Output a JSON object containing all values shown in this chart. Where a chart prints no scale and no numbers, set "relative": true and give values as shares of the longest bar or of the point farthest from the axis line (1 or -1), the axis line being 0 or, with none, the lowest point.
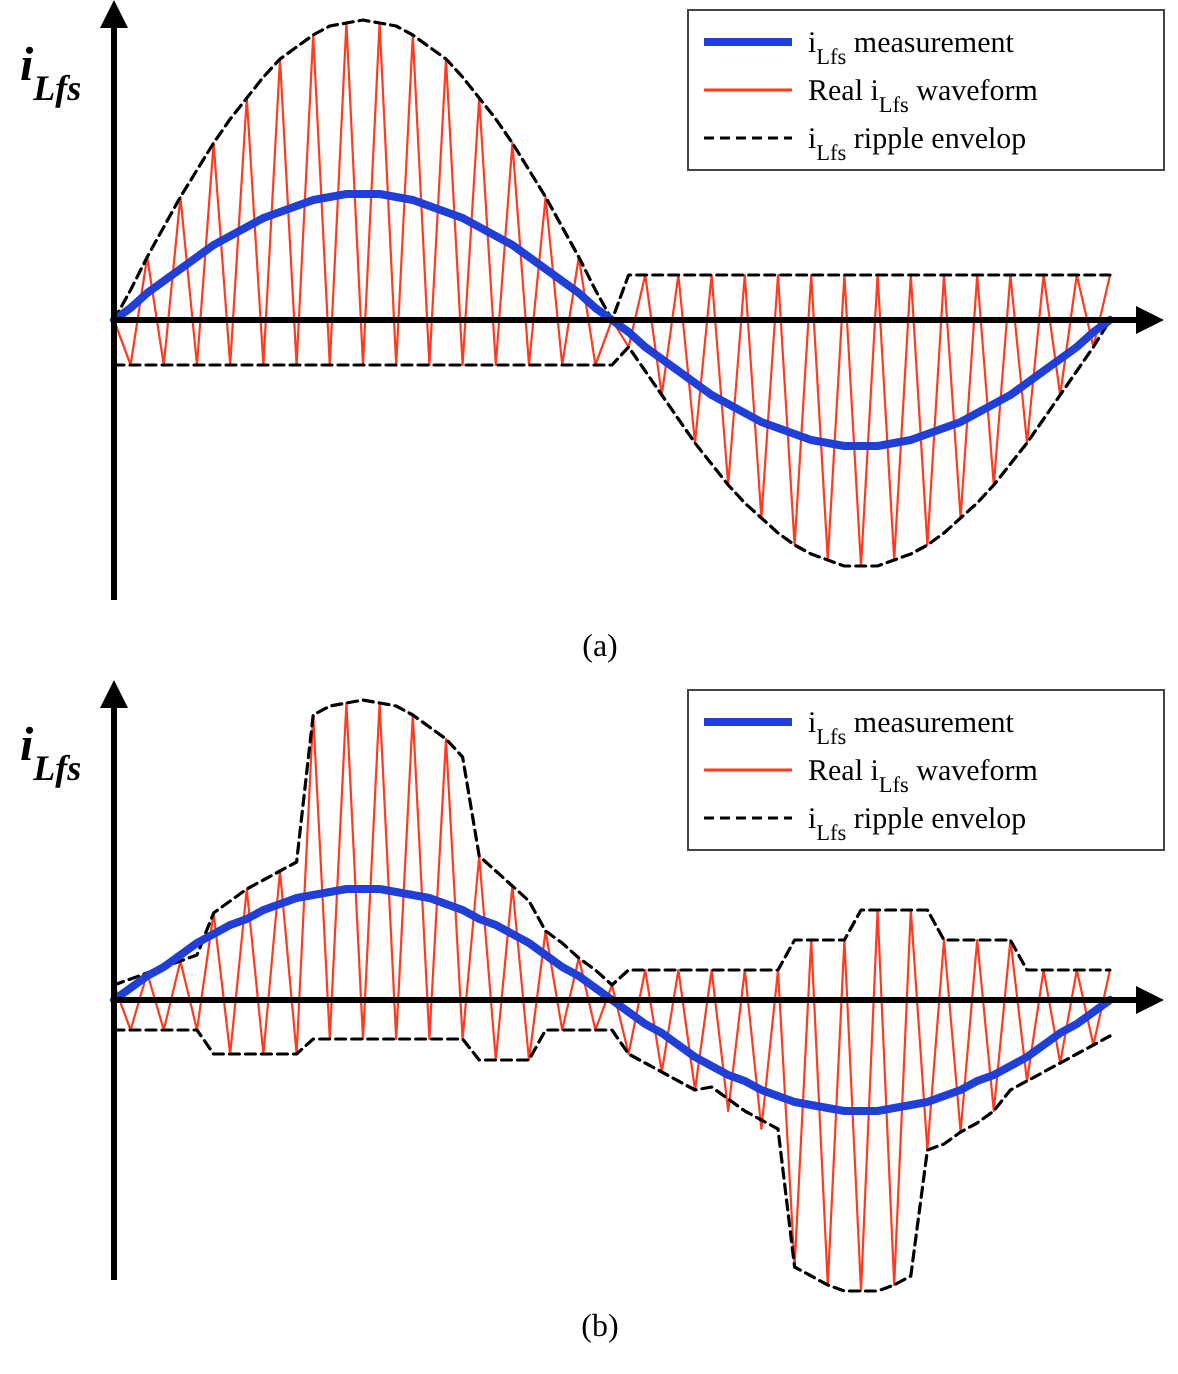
{
  "chart_data": [
    {
      "type": "line",
      "title": "(a)",
      "ylabel": "i$_{Lfs}$",
      "relative": true,
      "legend": "top right",
      "categories": [
        null,
        null,
        null,
        null,
        null,
        null,
        null,
        null,
        null,
        null,
        null,
        null,
        null,
        null,
        null,
        null,
        null,
        null,
        null,
        null,
        null,
        null,
        null,
        null,
        null,
        null,
        null,
        null,
        null,
        null,
        null,
        null,
        null,
        null,
        null,
        null,
        null,
        null,
        null,
        null,
        null,
        null,
        null,
        null,
        null,
        null,
        null,
        null,
        null,
        null,
        null,
        null,
        null,
        null,
        null,
        null,
        null,
        null,
        null,
        null,
        null
      ],
      "series": [
        {
          "name": "Real i$_{Lfs}$ waveform",
          "color": "#ff3b1f",
          "line_style": "solid",
          "values": [
            0,
            -0.15,
            0.21,
            -0.15,
            0.41,
            -0.15,
            0.59,
            -0.15,
            0.74,
            -0.15,
            0.87,
            -0.15,
            0.95,
            -0.15,
            0.99,
            -0.15,
            0.99,
            -0.15,
            0.95,
            -0.15,
            0.87,
            -0.15,
            0.74,
            -0.15,
            0.59,
            -0.15,
            0.41,
            -0.15,
            0.21,
            -0.15,
            0,
            -0.09,
            0.15,
            -0.25,
            0.15,
            -0.41,
            0.15,
            -0.55,
            0.15,
            -0.66,
            0.15,
            -0.75,
            0.15,
            -0.8,
            0.15,
            -0.82,
            0.15,
            -0.8,
            0.15,
            -0.75,
            0.15,
            -0.66,
            0.15,
            -0.55,
            0.15,
            -0.41,
            0.15,
            -0.25,
            0.15,
            -0.09,
            0.15
          ]
        },
        {
          "name": "i$_{Lfs}$ ripple envelop",
          "color": "#000000",
          "line_style": "dashed",
          "values": [
            0,
            0.1,
            0.21,
            0.31,
            0.41,
            0.5,
            0.59,
            0.67,
            0.74,
            0.81,
            0.87,
            0.91,
            0.95,
            0.98,
            0.99,
            1,
            0.99,
            0.98,
            0.95,
            0.91,
            0.87,
            0.81,
            0.74,
            0.67,
            0.59,
            0.5,
            0.41,
            0.31,
            0.21,
            0.1,
            0,
            0.15,
            0.15,
            0.15,
            0.15,
            0.15,
            0.15,
            0.15,
            0.15,
            0.15,
            0.15,
            0.15,
            0.15,
            0.15,
            0.15,
            0.15,
            0.15,
            0.15,
            0.15,
            0.15,
            0.15,
            0.15,
            0.15,
            0.15,
            0.15,
            0.15,
            0.15,
            0.15,
            0.15,
            0.15,
            0.15
          ]
        },
        {
          "color": "#000000",
          "line_style": "dashed",
          "values": [
            -0.15,
            -0.15,
            -0.15,
            -0.15,
            -0.15,
            -0.15,
            -0.15,
            -0.15,
            -0.15,
            -0.15,
            -0.15,
            -0.15,
            -0.15,
            -0.15,
            -0.15,
            -0.15,
            -0.15,
            -0.15,
            -0.15,
            -0.15,
            -0.15,
            -0.15,
            -0.15,
            -0.15,
            -0.15,
            -0.15,
            -0.15,
            -0.15,
            -0.15,
            -0.15,
            -0.15,
            -0.09,
            -0.17,
            -0.25,
            -0.33,
            -0.41,
            -0.48,
            -0.55,
            -0.61,
            -0.66,
            -0.71,
            -0.75,
            -0.78,
            -0.8,
            -0.82,
            -0.82,
            -0.82,
            -0.8,
            -0.78,
            -0.75,
            -0.71,
            -0.66,
            -0.61,
            -0.55,
            -0.48,
            -0.41,
            -0.33,
            -0.25,
            -0.17,
            -0.09,
            0
          ]
        },
        {
          "name": "i$_{Lfs}$ measurement",
          "color": "#1f3fd6",
          "line_style": "solid",
          "values": [
            0,
            0.04,
            0.09,
            0.13,
            0.17,
            0.21,
            0.25,
            0.28,
            0.31,
            0.34,
            0.36,
            0.38,
            0.4,
            0.41,
            0.42,
            0.42,
            0.42,
            0.41,
            0.4,
            0.38,
            0.36,
            0.34,
            0.31,
            0.28,
            0.25,
            0.21,
            0.17,
            0.13,
            0.09,
            0.04,
            0,
            -0.04,
            -0.09,
            -0.13,
            -0.17,
            -0.21,
            -0.25,
            -0.28,
            -0.31,
            -0.34,
            -0.36,
            -0.38,
            -0.4,
            -0.41,
            -0.42,
            -0.42,
            -0.42,
            -0.41,
            -0.4,
            -0.38,
            -0.36,
            -0.34,
            -0.31,
            -0.28,
            -0.25,
            -0.21,
            -0.17,
            -0.13,
            -0.09,
            -0.04,
            0
          ]
        }
      ]
    },
    {
      "type": "line",
      "title": "(b)",
      "ylabel": "i$_{Lfs}$",
      "relative": true,
      "legend": "top right",
      "categories": [
        null,
        null,
        null,
        null,
        null,
        null,
        null,
        null,
        null,
        null,
        null,
        null,
        null,
        null,
        null,
        null,
        null,
        null,
        null,
        null,
        null,
        null,
        null,
        null,
        null,
        null,
        null,
        null,
        null,
        null,
        null,
        null,
        null,
        null,
        null,
        null,
        null,
        null,
        null,
        null,
        null,
        null,
        null,
        null,
        null,
        null,
        null,
        null,
        null,
        null,
        null,
        null,
        null,
        null,
        null,
        null,
        null,
        null,
        null,
        null,
        null
      ],
      "series": [
        {
          "name": "Real i$_{Lfs}$ waveform",
          "color": "#ff3b1f",
          "line_style": "solid",
          "values": [
            0.05,
            -0.1,
            0.09,
            -0.1,
            0.13,
            -0.1,
            0.29,
            -0.18,
            0.37,
            -0.18,
            0.43,
            -0.18,
            0.95,
            -0.13,
            0.99,
            -0.13,
            0.99,
            -0.13,
            0.95,
            -0.13,
            0.87,
            -0.13,
            0.48,
            -0.2,
            0.38,
            -0.2,
            0.23,
            -0.1,
            0.14,
            -0.1,
            0.05,
            -0.18,
            0.1,
            -0.24,
            0.1,
            -0.3,
            0.1,
            -0.37,
            0.1,
            -0.43,
            0.1,
            -0.89,
            0.2,
            -0.95,
            0.2,
            -0.97,
            0.3,
            -0.95,
            0.3,
            -0.5,
            0.2,
            -0.44,
            0.2,
            -0.37,
            0.2,
            -0.27,
            0.1,
            -0.21,
            0.1,
            -0.15,
            0.1
          ]
        },
        {
          "name": "i$_{Lfs}$ ripple envelop",
          "color": "#000000",
          "line_style": "dashed",
          "values": [
            0.05,
            0.07,
            0.09,
            0.11,
            0.13,
            0.15,
            0.29,
            0.33,
            0.37,
            0.4,
            0.43,
            0.46,
            0.95,
            0.98,
            0.99,
            1,
            0.99,
            0.98,
            0.95,
            0.91,
            0.87,
            0.81,
            0.48,
            0.43,
            0.38,
            0.33,
            0.23,
            0.19,
            0.14,
            0.1,
            0.05,
            0.1,
            0.1,
            0.1,
            0.1,
            0.1,
            0.1,
            0.1,
            0.1,
            0.1,
            0.1,
            0.2,
            0.2,
            0.2,
            0.2,
            0.3,
            0.3,
            0.3,
            0.3,
            0.3,
            0.2,
            0.2,
            0.2,
            0.2,
            0.2,
            0.1,
            0.1,
            0.1,
            0.1,
            0.1,
            0.1
          ]
        },
        {
          "color": "#000000",
          "line_style": "dashed",
          "values": [
            -0.1,
            -0.1,
            -0.1,
            -0.1,
            -0.1,
            -0.1,
            -0.18,
            -0.18,
            -0.18,
            -0.18,
            -0.18,
            -0.18,
            -0.13,
            -0.13,
            -0.13,
            -0.13,
            -0.13,
            -0.13,
            -0.13,
            -0.13,
            -0.13,
            -0.13,
            -0.2,
            -0.2,
            -0.2,
            -0.2,
            -0.1,
            -0.1,
            -0.1,
            -0.1,
            -0.1,
            -0.18,
            -0.21,
            -0.24,
            -0.27,
            -0.3,
            -0.29,
            -0.33,
            -0.37,
            -0.4,
            -0.43,
            -0.89,
            -0.92,
            -0.95,
            -0.97,
            -0.97,
            -0.97,
            -0.95,
            -0.92,
            -0.5,
            -0.48,
            -0.44,
            -0.41,
            -0.37,
            -0.3,
            -0.27,
            -0.24,
            -0.21,
            -0.18,
            -0.15,
            -0.12
          ]
        },
        {
          "name": "i$_{Lfs}$ measurement",
          "color": "#1f3fd6",
          "line_style": "solid",
          "values": [
            0,
            0.04,
            0.08,
            0.11,
            0.15,
            0.19,
            0.22,
            0.25,
            0.27,
            0.3,
            0.32,
            0.34,
            0.35,
            0.36,
            0.37,
            0.37,
            0.37,
            0.36,
            0.35,
            0.34,
            0.32,
            0.3,
            0.27,
            0.25,
            0.22,
            0.19,
            0.15,
            0.11,
            0.08,
            0.04,
            0,
            -0.04,
            -0.08,
            -0.11,
            -0.15,
            -0.19,
            -0.22,
            -0.25,
            -0.27,
            -0.3,
            -0.32,
            -0.34,
            -0.35,
            -0.36,
            -0.37,
            -0.37,
            -0.37,
            -0.36,
            -0.35,
            -0.34,
            -0.32,
            -0.3,
            -0.27,
            -0.25,
            -0.22,
            -0.19,
            -0.15,
            -0.11,
            -0.08,
            -0.04,
            0
          ]
        }
      ]
    }
  ]
}
